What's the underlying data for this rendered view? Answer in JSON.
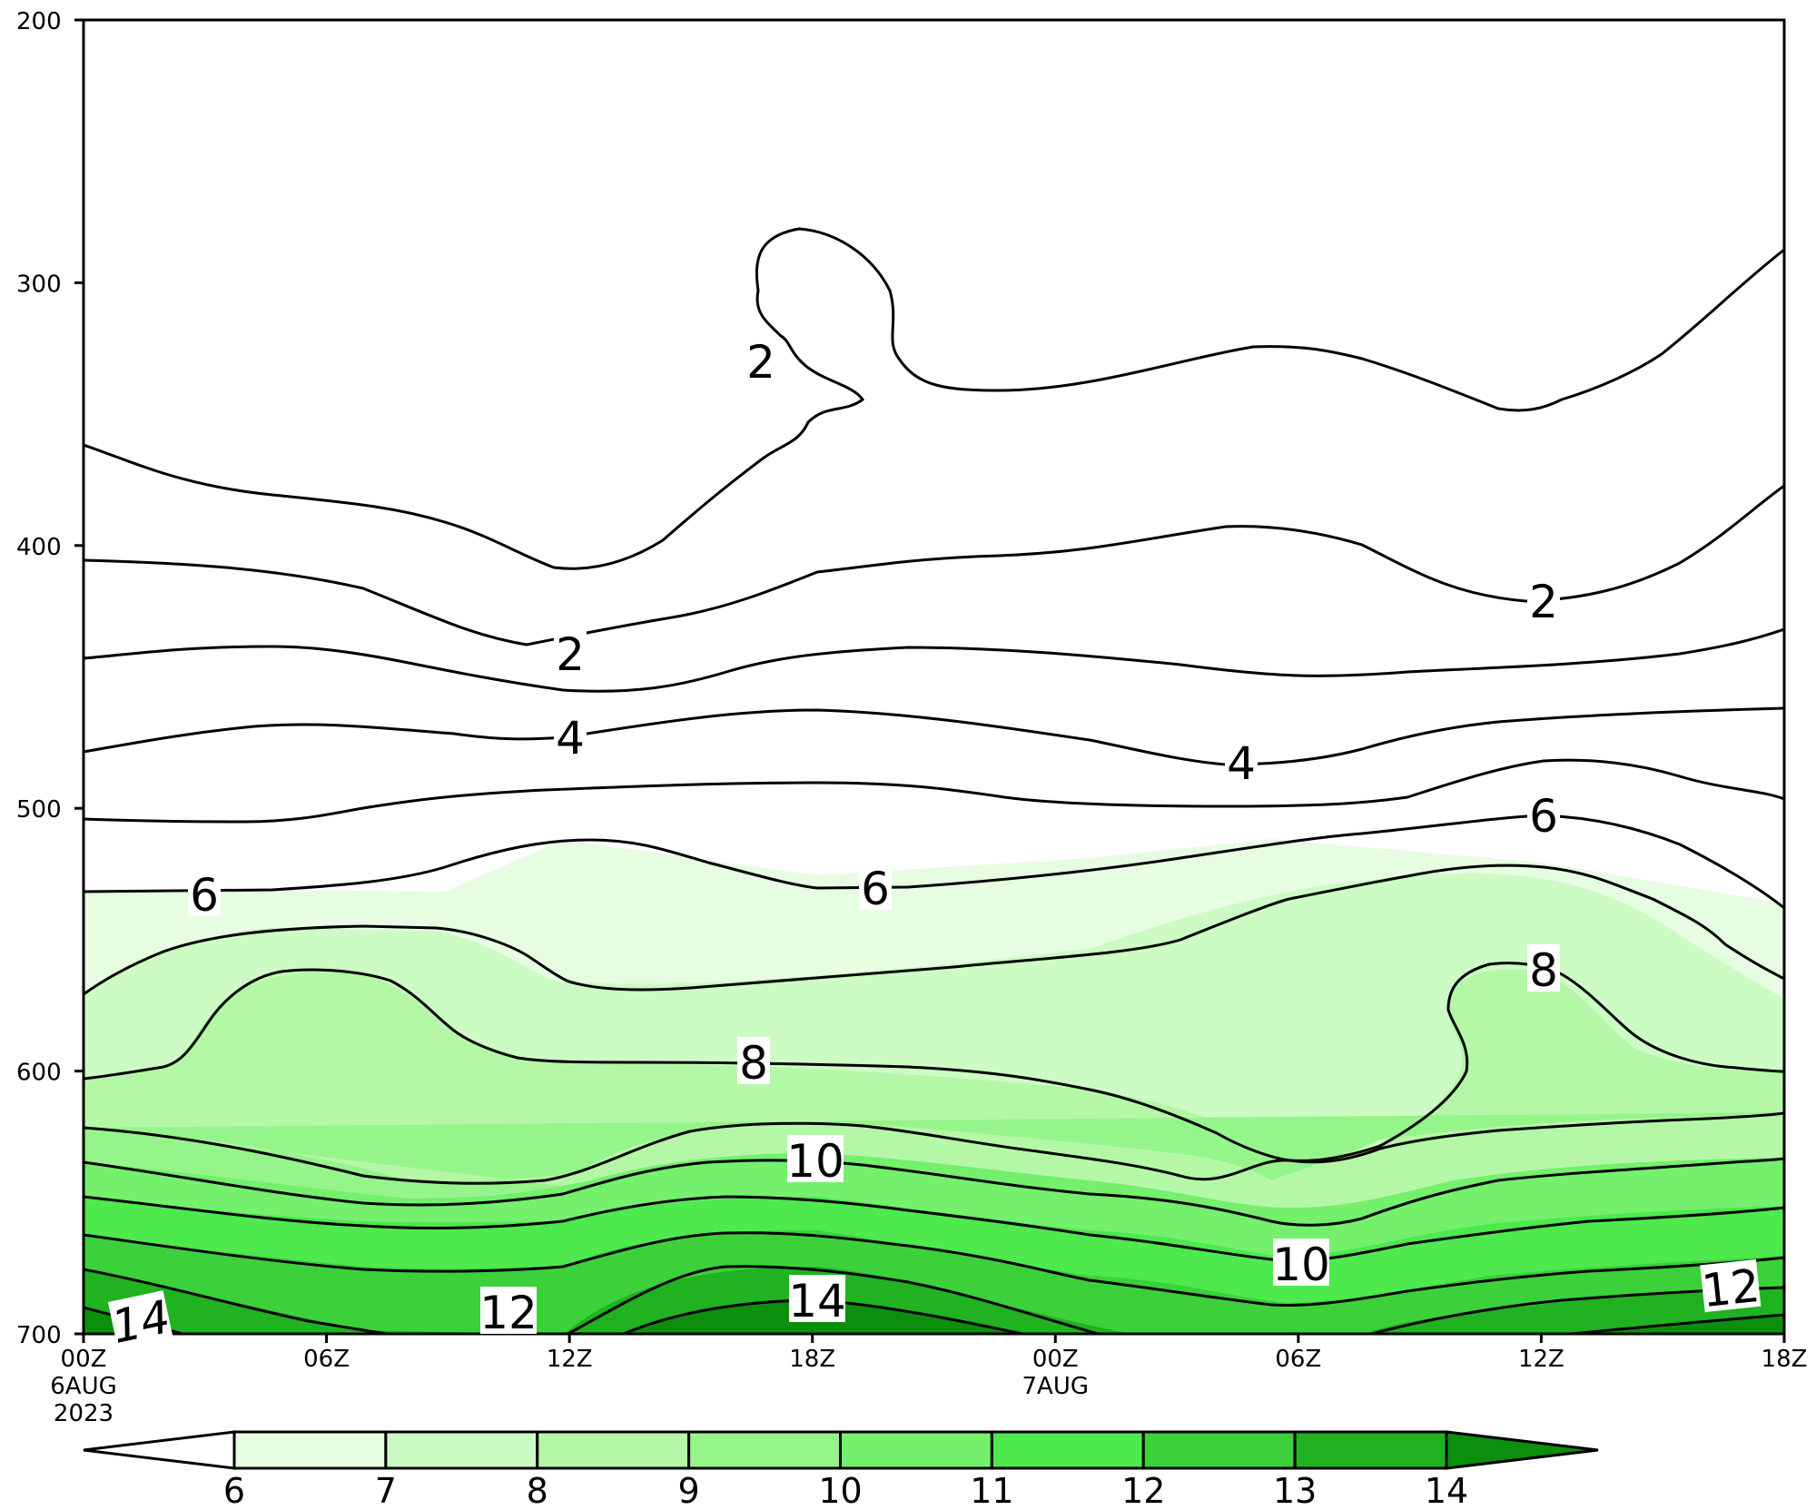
{
  "chart_data": {
    "type": "contour",
    "title": "",
    "xlabel": "",
    "ylabel": "",
    "y_axis": {
      "ticks": [
        "200",
        "300",
        "400",
        "500",
        "600",
        "700"
      ],
      "ylim": [
        200,
        700
      ],
      "scale": "pressure (inverted)"
    },
    "x_axis": {
      "ticks": [
        "00Z",
        "06Z",
        "12Z",
        "18Z",
        "00Z",
        "06Z",
        "12Z",
        "18Z"
      ],
      "date_labels": [
        {
          "at": "00Z",
          "lines": [
            "6AUG",
            "2023"
          ]
        },
        {
          "at": "00Z",
          "lines": [
            "7AUG"
          ]
        }
      ]
    },
    "fill_levels": [
      6,
      7,
      8,
      9,
      10,
      11,
      12,
      13,
      14
    ],
    "fill_colors": [
      "#ffffff",
      "#e6fde2",
      "#ccfcc4",
      "#b4f8a7",
      "#96f58a",
      "#74f06d",
      "#4ee94d",
      "#3cd13b",
      "#20b220",
      "#0c8f0c"
    ],
    "colorbar": {
      "labels": [
        "6",
        "7",
        "8",
        "9",
        "10",
        "11",
        "12",
        "13",
        "14"
      ],
      "extend": "both"
    },
    "contour_labels": [
      "2",
      "2",
      "2",
      "4",
      "4",
      "6",
      "6",
      "6",
      "8",
      "8",
      "10",
      "10",
      "12",
      "12",
      "14",
      "14"
    ]
  }
}
